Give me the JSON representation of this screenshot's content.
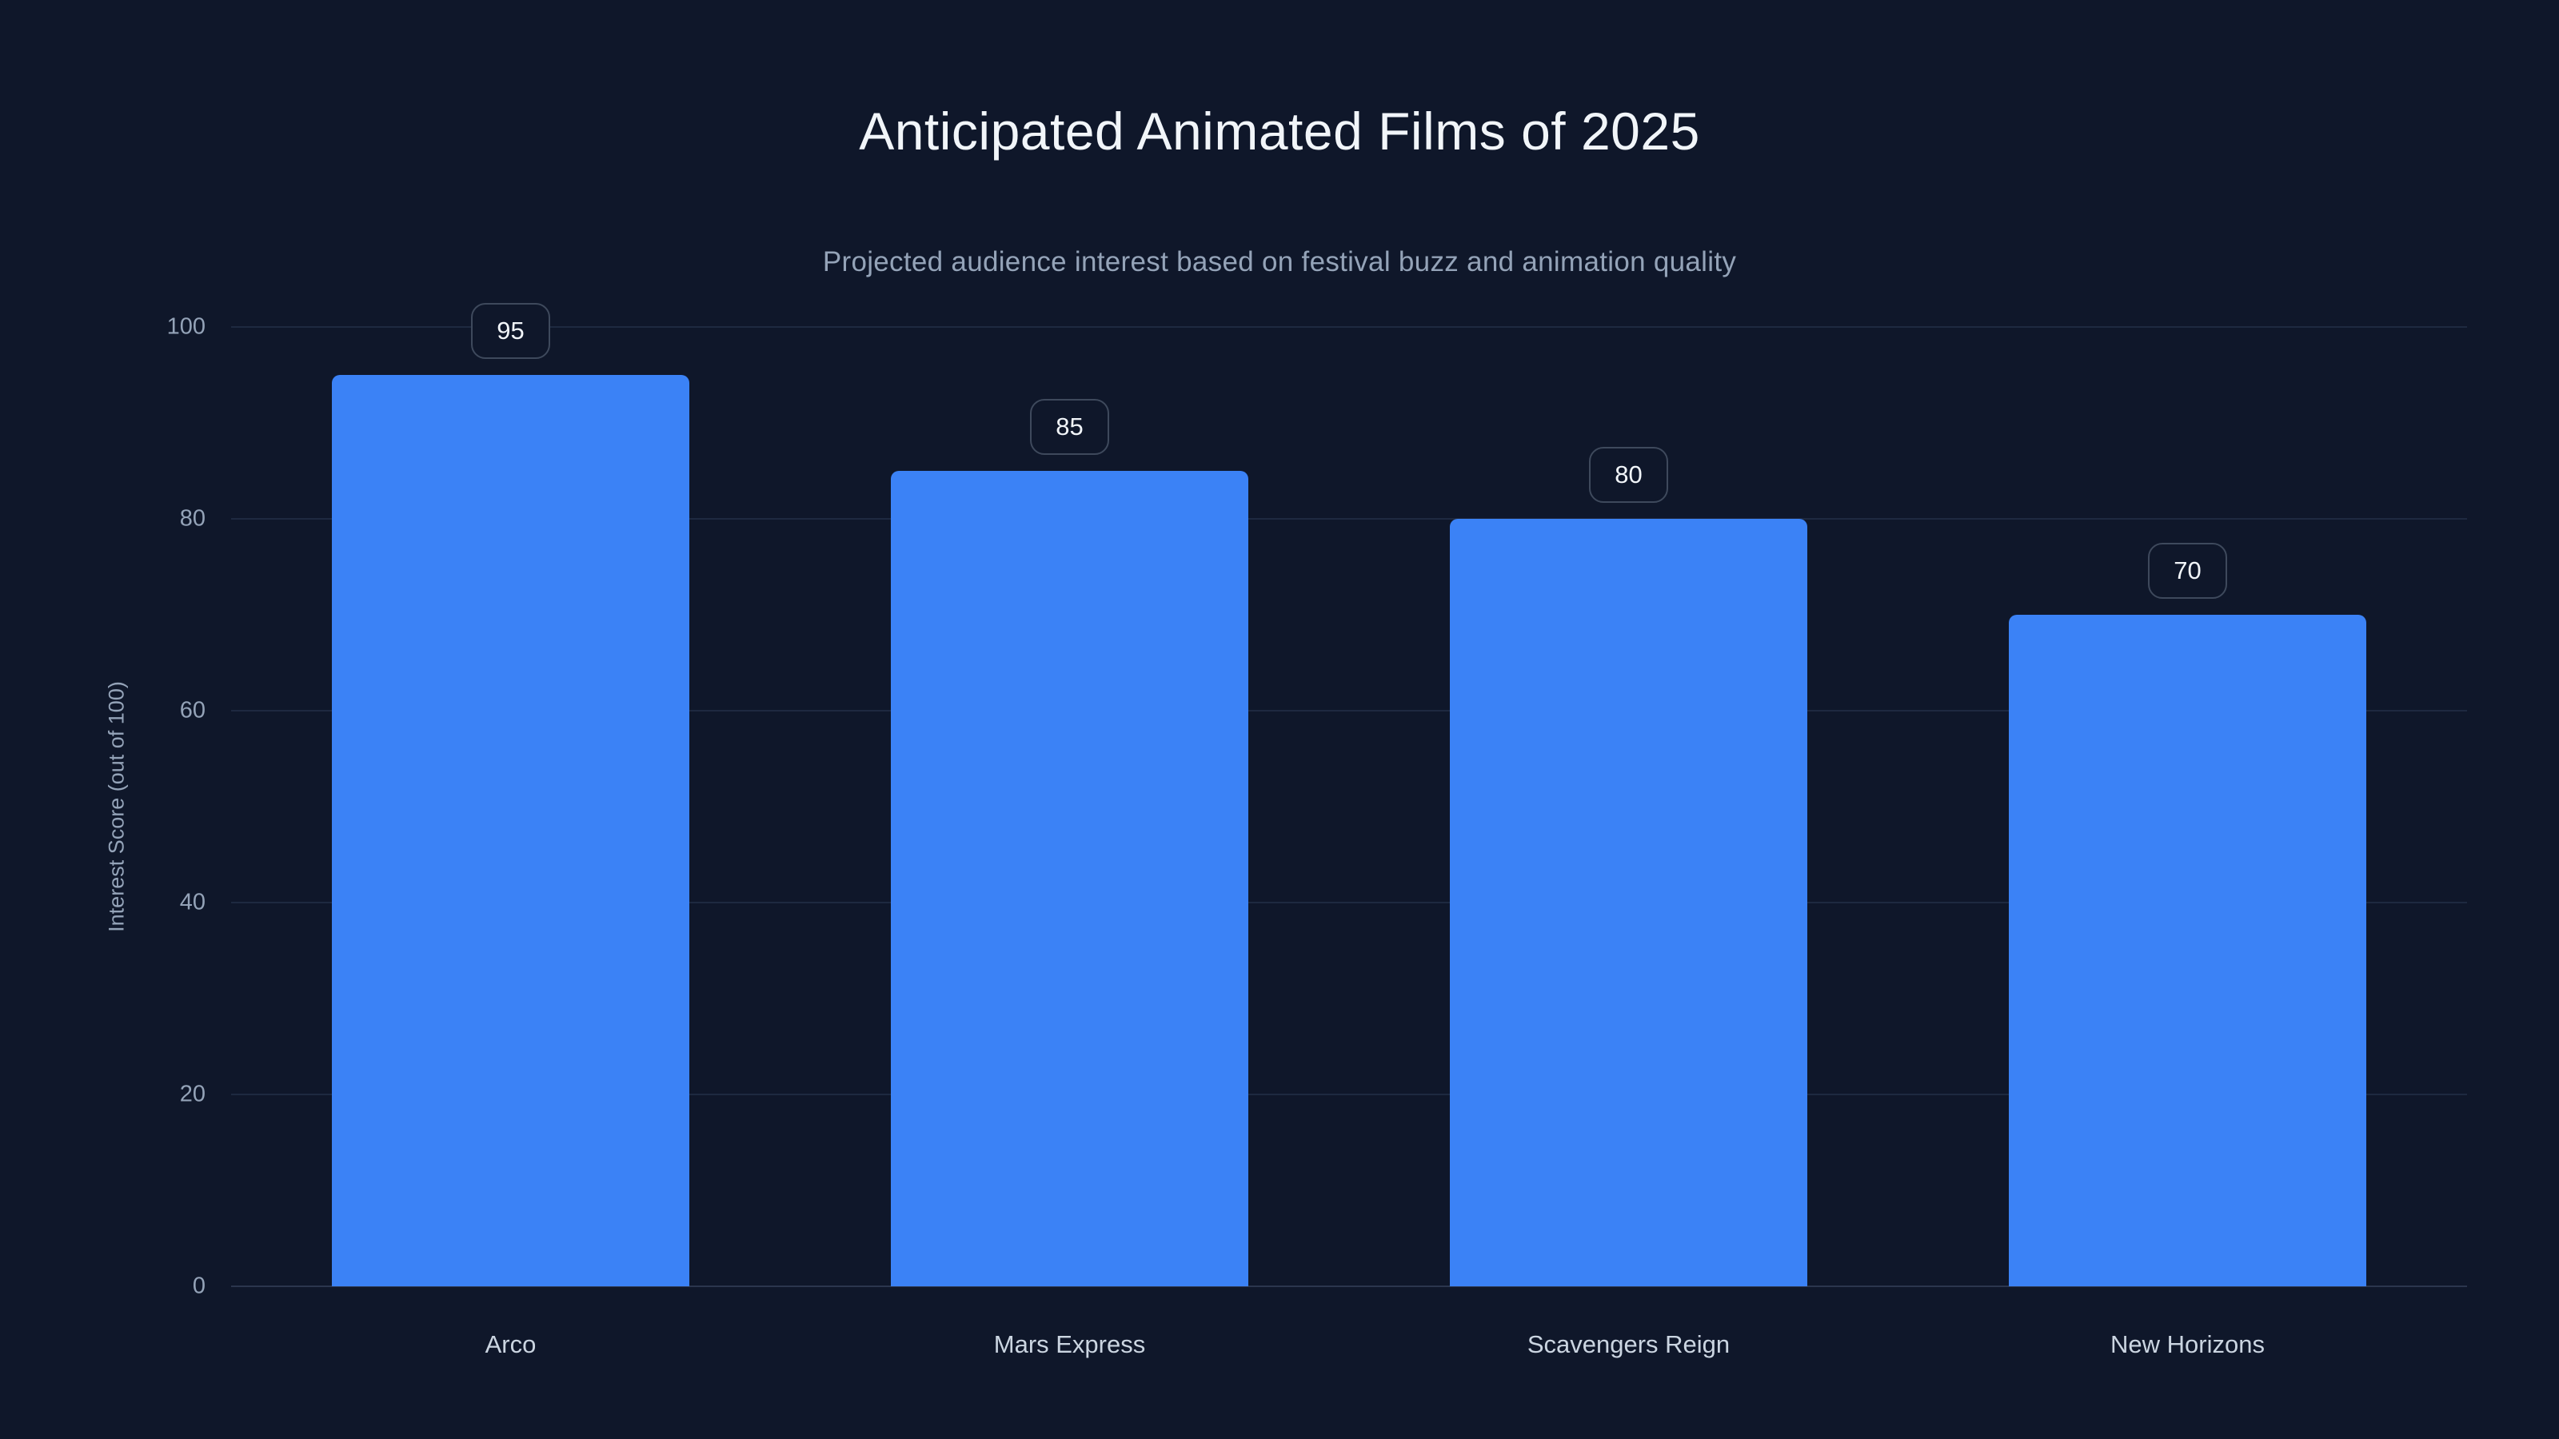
{
  "header": {
    "title": "Anticipated Animated Films of 2025",
    "subtitle": "Projected audience interest based on festival buzz and animation quality"
  },
  "chart_data": {
    "type": "bar",
    "title": "Anticipated Animated Films of 2025",
    "subtitle": "Projected audience interest based on festival buzz and animation quality",
    "categories": [
      "Arco",
      "Mars Express",
      "Scavengers Reign",
      "New Horizons"
    ],
    "values": [
      95,
      85,
      80,
      70
    ],
    "value_labels": [
      "95",
      "85",
      "80",
      "70"
    ],
    "xlabel": "",
    "ylabel": "Interest Score (out of 100)",
    "ylim": [
      0,
      100
    ],
    "yticks": [
      0,
      20,
      40,
      60,
      80,
      100
    ],
    "grid": true,
    "legend": false,
    "bar_color": "#3b82f6",
    "background_color": "#0f172a",
    "gridline_color": "#1e2940",
    "axis_text_color": "#94a3b8",
    "category_text_color": "#cbd5e1",
    "title_color": "#f1f5f9",
    "badge_border_color": "#3e495c"
  }
}
